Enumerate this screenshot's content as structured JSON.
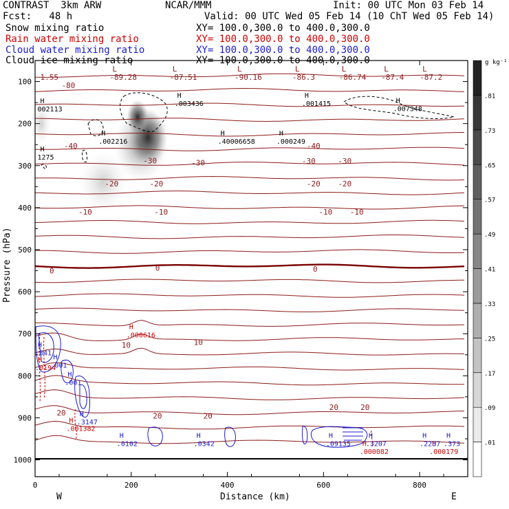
{
  "header": {
    "title": "CONTRAST  3km ARW",
    "forecast": "Fcst:   48 h",
    "center": "NCAR/MMM",
    "init": "Init: 00 UTC Mon 03 Feb 14",
    "valid": "Valid: 00 UTC Wed 05 Feb 14 (10 ChT Wed 05 Feb 14)"
  },
  "legend": [
    {
      "label": "Snow mixing ratio",
      "xy": "XY= 100.0,300.0 to 400.0,300.0",
      "color": "#000000"
    },
    {
      "label": "Rain water mixing ratio",
      "xy": "XY= 100.0,300.0 to 400.0,300.0",
      "color": "#cc0000"
    },
    {
      "label": "Cloud water mixing ratio",
      "xy": "XY= 100.0,300.0 to 400.0,300.0",
      "color": "#1a1acc"
    },
    {
      "label": "Cloud ice mixing ratio",
      "xy": "XY= 100.0,300.0 to 400.0,300.0",
      "color": "#000000"
    }
  ],
  "chart_data": {
    "type": "cross-section",
    "xlabel": "Distance (km)",
    "ylabel": "Pressure (hPa)",
    "xlim": [
      0,
      900
    ],
    "ylim": [
      1040,
      50
    ],
    "x_ticks": [
      0,
      200,
      400,
      600,
      800
    ],
    "y_ticks": [
      100,
      200,
      300,
      400,
      500,
      600,
      700,
      800,
      900,
      1000
    ],
    "direction_left": "W",
    "direction_right": "E",
    "colorbar": {
      "unit": "g kg⁻¹",
      "levels": [
        ".01",
        ".09",
        ".17",
        ".25",
        ".33",
        ".41",
        ".49",
        ".57",
        ".65",
        ".73",
        ".81"
      ]
    },
    "temperature_contours": [
      {
        "level": -80,
        "p": 120
      },
      {
        "level": -40,
        "p": 255
      },
      {
        "level": -30,
        "p": 300
      },
      {
        "level": -20,
        "p": 345
      },
      {
        "level": -10,
        "p": 410
      },
      {
        "level": 0,
        "p": 552
      },
      {
        "level": 10,
        "p": 725
      },
      {
        "level": 20,
        "p": 880
      }
    ],
    "temp_labels": [
      {
        "text": "-80",
        "x": 55,
        "p": 109
      },
      {
        "text": "-40",
        "x": 60,
        "p": 253
      },
      {
        "text": "-40",
        "x": 565,
        "p": 253
      },
      {
        "text": "-30",
        "x": 225,
        "p": 288
      },
      {
        "text": "-30",
        "x": 325,
        "p": 293
      },
      {
        "text": "-30",
        "x": 555,
        "p": 289
      },
      {
        "text": "-30",
        "x": 630,
        "p": 289
      },
      {
        "text": "-20",
        "x": 145,
        "p": 343
      },
      {
        "text": "-20",
        "x": 238,
        "p": 343
      },
      {
        "text": "-20",
        "x": 565,
        "p": 343
      },
      {
        "text": "-20",
        "x": 630,
        "p": 343
      },
      {
        "text": "-10",
        "x": 90,
        "p": 410
      },
      {
        "text": "-10",
        "x": 248,
        "p": 410
      },
      {
        "text": "-10",
        "x": 590,
        "p": 410
      },
      {
        "text": "-10",
        "x": 655,
        "p": 410
      },
      {
        "text": "0",
        "x": 30,
        "p": 550
      },
      {
        "text": "0",
        "x": 250,
        "p": 543
      },
      {
        "text": "0",
        "x": 578,
        "p": 546
      },
      {
        "text": "10",
        "x": 180,
        "p": 727
      },
      {
        "text": "10",
        "x": 330,
        "p": 720
      },
      {
        "text": "20",
        "x": 45,
        "p": 888
      },
      {
        "text": "20",
        "x": 245,
        "p": 895
      },
      {
        "text": "20",
        "x": 350,
        "p": 895
      },
      {
        "text": "20",
        "x": 612,
        "p": 875
      },
      {
        "text": "20",
        "x": 677,
        "p": 875
      }
    ],
    "top_L_values": [
      {
        "text": "1.55",
        "x": 5
      },
      {
        "text": "-89.28",
        "x": 155
      },
      {
        "text": "-87.51",
        "x": 280
      },
      {
        "text": "-90.16",
        "x": 415
      },
      {
        "text": "-86.3",
        "x": 535
      },
      {
        "text": "-86.74",
        "x": 632
      },
      {
        "text": "-87.4",
        "x": 720
      },
      {
        "text": "-87.2",
        "x": 800
      }
    ],
    "ice_maxima": [
      {
        "text": "002113",
        "x": 5,
        "p": 168
      },
      {
        "text": ".003436",
        "x": 290,
        "p": 155
      },
      {
        "text": ".001415",
        "x": 555,
        "p": 155
      },
      {
        "text": ".007348",
        "x": 745,
        "p": 167
      },
      {
        "text": ".002216",
        "x": 132,
        "p": 245
      },
      {
        "text": ".40006658",
        "x": 380,
        "p": 245
      },
      {
        "text": ".000249",
        "x": 502,
        "p": 245
      },
      {
        "text": "1275",
        "x": 5,
        "p": 282
      }
    ],
    "rain_maxima": [
      {
        "text": ".000616",
        "x": 190,
        "p": 705
      },
      {
        "text": ".0194",
        "x": 0,
        "p": 783
      },
      {
        "text": ".001382",
        "x": 65,
        "p": 928
      },
      {
        "text": ".000082",
        "x": 675,
        "p": 983
      },
      {
        "text": ".000179",
        "x": 820,
        "p": 983
      }
    ],
    "cloud_maxima": [
      {
        "text": ".841",
        "x": 0,
        "p": 748
      },
      {
        "text": ".001",
        "x": 32,
        "p": 777
      },
      {
        "text": ".001",
        "x": 62,
        "p": 818
      },
      {
        "text": ".3147",
        "x": 87,
        "p": 912
      },
      {
        "text": ".0102",
        "x": 170,
        "p": 964
      },
      {
        "text": ".0342",
        "x": 330,
        "p": 964
      },
      {
        "text": ".09135",
        "x": 605,
        "p": 964
      },
      {
        "text": ".3207",
        "x": 688,
        "p": 964
      },
      {
        "text": ".2257",
        "x": 800,
        "p": 964
      },
      {
        "text": ".373",
        "x": 850,
        "p": 964
      }
    ]
  }
}
